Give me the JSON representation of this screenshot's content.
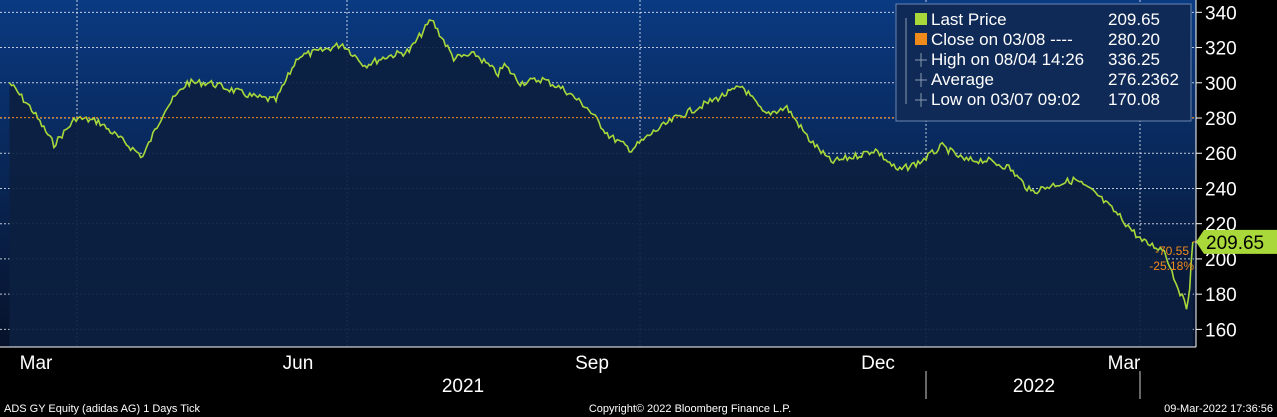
{
  "chart_data": {
    "type": "area",
    "series": [
      {
        "name": "Last Price",
        "x": [
          "2021-03-01",
          "2021-03-08",
          "2021-03-15",
          "2021-03-22",
          "2021-03-29",
          "2021-04-05",
          "2021-04-12",
          "2021-04-19",
          "2021-04-26",
          "2021-05-03",
          "2021-05-10",
          "2021-05-17",
          "2021-05-24",
          "2021-05-31",
          "2021-06-07",
          "2021-06-14",
          "2021-06-21",
          "2021-06-28",
          "2021-07-05",
          "2021-07-12",
          "2021-07-19",
          "2021-07-26",
          "2021-08-02",
          "2021-08-04",
          "2021-08-09",
          "2021-08-16",
          "2021-08-23",
          "2021-08-30",
          "2021-09-06",
          "2021-09-13",
          "2021-09-20",
          "2021-09-27",
          "2021-10-04",
          "2021-10-11",
          "2021-10-18",
          "2021-10-25",
          "2021-11-01",
          "2021-11-08",
          "2021-11-15",
          "2021-11-22",
          "2021-11-29",
          "2021-12-06",
          "2021-12-13",
          "2021-12-20",
          "2021-12-27",
          "2022-01-03",
          "2022-01-10",
          "2022-01-17",
          "2022-01-24",
          "2022-01-31",
          "2022-02-07",
          "2022-02-14",
          "2022-02-21",
          "2022-02-28",
          "2022-03-03",
          "2022-03-07",
          "2022-03-08",
          "2022-03-09"
        ],
        "values": [
          300,
          285,
          265,
          280,
          278,
          268,
          258,
          285,
          300,
          300,
          296,
          292,
          290,
          315,
          318,
          322,
          310,
          315,
          318,
          336,
          314,
          316,
          305,
          310,
          300,
          302,
          296,
          286,
          270,
          262,
          272,
          280,
          286,
          292,
          298,
          282,
          286,
          268,
          255,
          258,
          262,
          250,
          255,
          264,
          256,
          256,
          252,
          238,
          242,
          245,
          236,
          224,
          210,
          205,
          190,
          172,
          185,
          209.65
        ]
      }
    ],
    "x_ticks": [
      "Mar",
      "Jun",
      "Sep",
      "Dec",
      "Mar"
    ],
    "x_years": [
      "2021",
      "2022"
    ],
    "y_ticks": [
      160,
      180,
      200,
      220,
      240,
      260,
      280,
      300,
      320,
      340
    ],
    "ylim": [
      150,
      347
    ],
    "xlim": [
      "2021-02-26",
      "2022-03-10"
    ],
    "grid": true,
    "legend_position": "top-right",
    "close_reference": 280.2,
    "last_value_label": "209.65",
    "change_label": "-70.55",
    "change_pct_label": "-25.18%",
    "legend": [
      {
        "label": "Last Price",
        "value": "209.65",
        "marker": "square",
        "color": "#a8d83a"
      },
      {
        "label": "Close on 03/08 ----",
        "value": "280.20",
        "marker": "square",
        "color": "#f08a1a"
      },
      {
        "label": "High on 08/04 14:26",
        "value": "336.25",
        "marker": "line",
        "color": "#8a9ab0"
      },
      {
        "label": "Average",
        "value": "276.2362",
        "marker": "line",
        "color": "#8a9ab0"
      },
      {
        "label": "Low on 03/07 09:02",
        "value": "170.08",
        "marker": "line",
        "color": "#8a9ab0"
      }
    ],
    "colors": {
      "plot_top": "#0a3a82",
      "plot_bottom": "#07122a",
      "area_fill": "#0c2040",
      "line": "#a8d83a",
      "close_line": "#f08a1a",
      "grid": "#ffffff",
      "legend_bg": "#0f2a56",
      "legend_border": "#6a86b0",
      "delta_text": "#f08a1a"
    }
  },
  "footer": {
    "left": "ADS GY Equity (adidas AG) 1 Days  Tick",
    "center": "Copyright© 2022 Bloomberg Finance L.P.",
    "right": "09-Mar-2022 17:36:56"
  }
}
